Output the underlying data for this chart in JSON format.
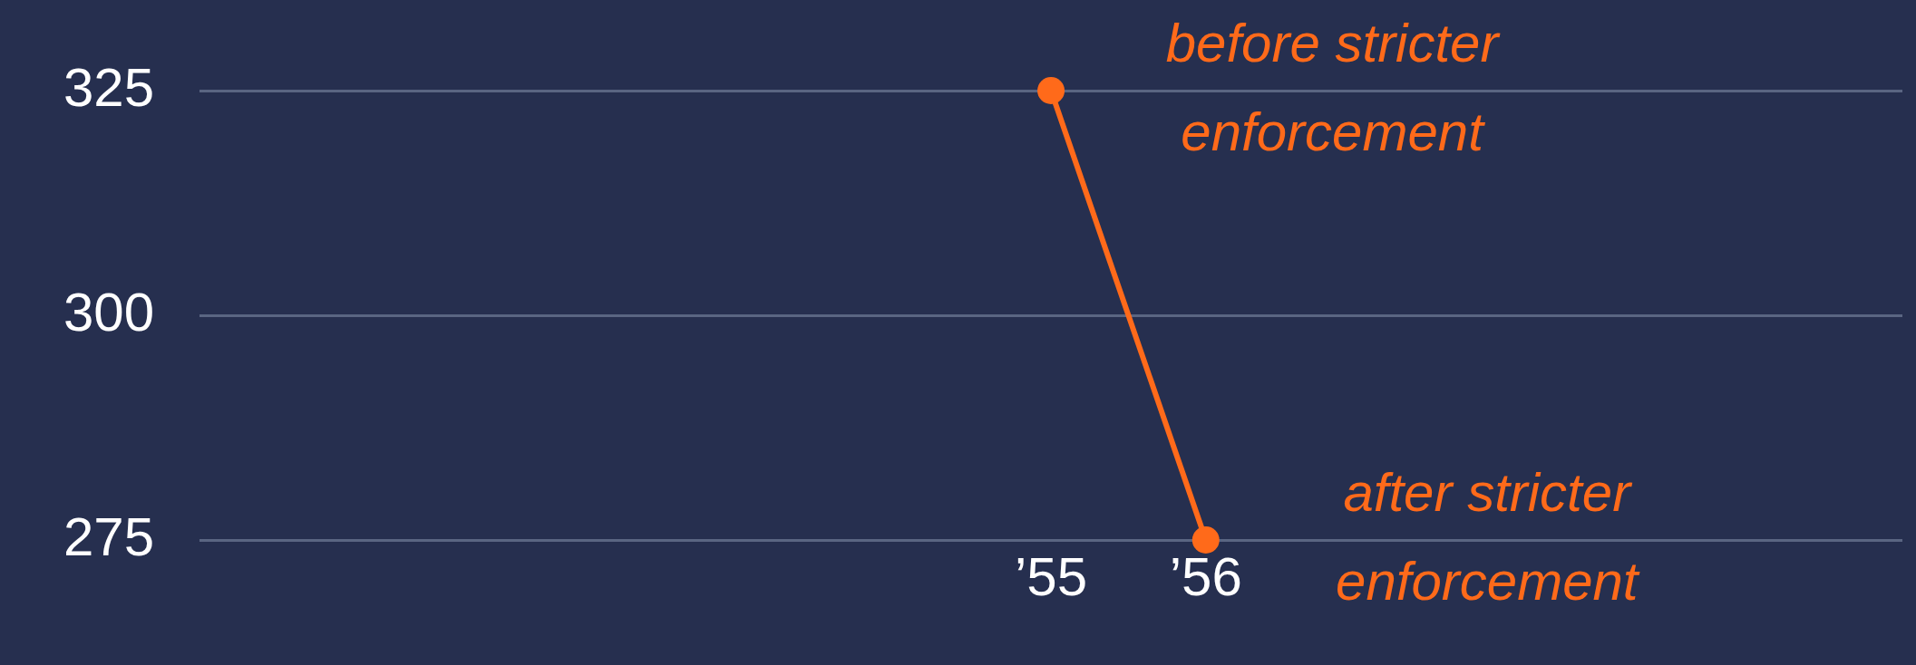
{
  "chart_data": {
    "type": "line",
    "x": [
      1955,
      1956
    ],
    "series": [
      {
        "color": "#ff6a1a",
        "values": [
          325,
          275
        ]
      }
    ],
    "xlim": [
      1949.5,
      1960.5
    ],
    "xticks": [
      {
        "value": 1955,
        "label": "’55"
      },
      {
        "value": 1956,
        "label": "’56"
      }
    ],
    "ylim": [
      275,
      325
    ],
    "yticks": [
      275,
      300,
      325
    ],
    "grid": "y",
    "marker": "circle",
    "legend": false,
    "annotations": [
      {
        "text": "before stricter enforcement",
        "x": 1955,
        "y": 325
      },
      {
        "text": "after stricter enforcement",
        "x": 1956,
        "y": 275
      }
    ]
  }
}
